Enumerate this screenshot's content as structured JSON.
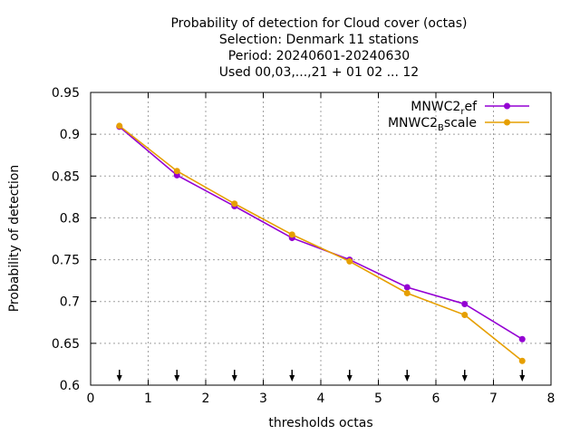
{
  "chart_data": {
    "type": "line",
    "title_lines": [
      "Probability of detection  for Cloud cover (octas)",
      "Selection: Denmark     11 stations",
      "Period: 20240601-20240630",
      "Used 00,03,...,21 + 01 02 ... 12"
    ],
    "xlabel": "thresholds octas",
    "ylabel": "Probability of detection",
    "xlim": [
      0,
      8
    ],
    "ylim": [
      0.6,
      0.95
    ],
    "xticks": [
      "0",
      "1",
      "2",
      "3",
      "4",
      "5",
      "6",
      "7",
      "8"
    ],
    "yticks": [
      "0.6",
      "0.65",
      "0.7",
      "0.75",
      "0.8",
      "0.85",
      "0.9",
      "0.95"
    ],
    "grid": true,
    "legend_position": "top-right",
    "series": [
      {
        "name_main": "MNWC2",
        "name_sub": "r",
        "name_rest": "ef",
        "color": "#9400d3",
        "x": [
          0.5,
          1.5,
          2.5,
          3.5,
          4.5,
          5.5,
          6.5,
          7.5
        ],
        "values": [
          0.909,
          0.851,
          0.814,
          0.776,
          0.75,
          0.717,
          0.697,
          0.655
        ]
      },
      {
        "name_main": "MNWC2",
        "name_sub": "B",
        "name_rest": "scale",
        "color": "#e69f00",
        "x": [
          0.5,
          1.5,
          2.5,
          3.5,
          4.5,
          5.5,
          6.5,
          7.5
        ],
        "values": [
          0.91,
          0.856,
          0.817,
          0.78,
          0.748,
          0.71,
          0.684,
          0.629
        ]
      }
    ],
    "arrow_x": [
      0.5,
      1.5,
      2.5,
      3.5,
      4.5,
      5.5,
      6.5,
      7.5
    ]
  }
}
